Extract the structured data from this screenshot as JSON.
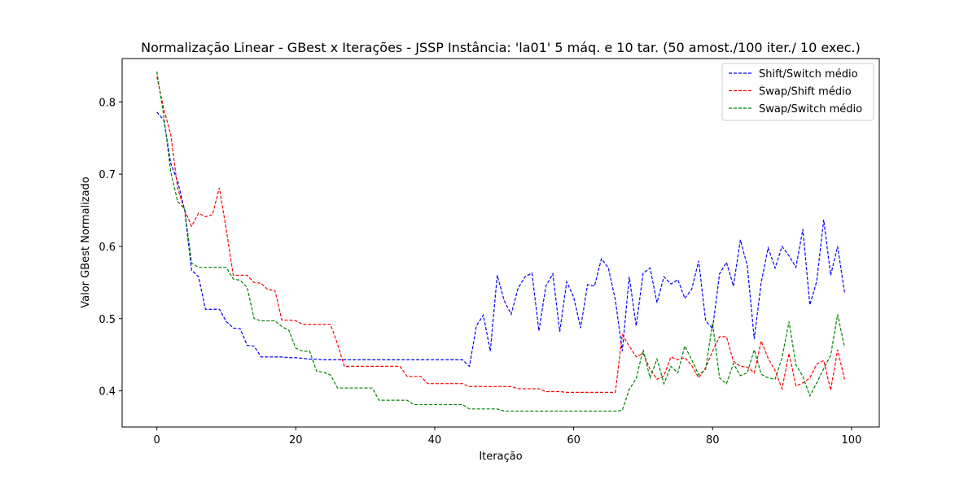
{
  "chart_data": {
    "type": "line",
    "title": "Normalização Linear - GBest x Iterações - JSSP Instância: 'la01' 5 máq. e 10 tar. (50 amost./100 iter./ 10 exec.)",
    "xlabel": "Iteração",
    "ylabel": "Valor GBest Normalizado",
    "xlim": [
      -5,
      104
    ],
    "ylim": [
      0.35,
      0.86
    ],
    "xticks": [
      0,
      20,
      40,
      60,
      80,
      100
    ],
    "yticks": [
      0.4,
      0.5,
      0.6,
      0.7,
      0.8
    ],
    "ytick_labels": [
      "0.4",
      "0.5",
      "0.6",
      "0.7",
      "0.8"
    ],
    "legend_position": "top-right",
    "grid": false,
    "series": [
      {
        "name": "Shift/Switch médio",
        "color": "#0000ff",
        "values": [
          0.786,
          0.775,
          0.715,
          0.69,
          0.65,
          0.567,
          0.558,
          0.513,
          0.513,
          0.513,
          0.496,
          0.487,
          0.486,
          0.463,
          0.462,
          0.447,
          0.447,
          0.447,
          0.447,
          0.446,
          0.446,
          0.445,
          0.444,
          0.444,
          0.443,
          0.443,
          0.443,
          0.443,
          0.443,
          0.443,
          0.443,
          0.443,
          0.443,
          0.443,
          0.443,
          0.443,
          0.443,
          0.443,
          0.443,
          0.443,
          0.443,
          0.443,
          0.443,
          0.443,
          0.443,
          0.434,
          0.49,
          0.505,
          0.455,
          0.56,
          0.525,
          0.506,
          0.542,
          0.558,
          0.563,
          0.483,
          0.545,
          0.562,
          0.482,
          0.551,
          0.53,
          0.487,
          0.547,
          0.545,
          0.583,
          0.57,
          0.526,
          0.455,
          0.558,
          0.49,
          0.563,
          0.57,
          0.522,
          0.558,
          0.548,
          0.554,
          0.528,
          0.541,
          0.58,
          0.497,
          0.486,
          0.562,
          0.578,
          0.545,
          0.609,
          0.573,
          0.472,
          0.55,
          0.598,
          0.57,
          0.6,
          0.587,
          0.571,
          0.624,
          0.519,
          0.552,
          0.637,
          0.56,
          0.6,
          0.536
        ]
      },
      {
        "name": "Swap/Shift médio",
        "color": "#ff0000",
        "values": [
          0.835,
          0.79,
          0.755,
          0.68,
          0.65,
          0.628,
          0.646,
          0.641,
          0.644,
          0.681,
          0.623,
          0.56,
          0.56,
          0.56,
          0.55,
          0.549,
          0.54,
          0.539,
          0.498,
          0.498,
          0.497,
          0.492,
          0.492,
          0.492,
          0.492,
          0.492,
          0.465,
          0.434,
          0.434,
          0.434,
          0.434,
          0.434,
          0.434,
          0.434,
          0.434,
          0.434,
          0.42,
          0.42,
          0.42,
          0.41,
          0.41,
          0.41,
          0.41,
          0.41,
          0.41,
          0.406,
          0.406,
          0.406,
          0.406,
          0.406,
          0.406,
          0.406,
          0.403,
          0.403,
          0.403,
          0.403,
          0.399,
          0.399,
          0.399,
          0.398,
          0.398,
          0.398,
          0.398,
          0.398,
          0.398,
          0.398,
          0.398,
          0.478,
          0.462,
          0.447,
          0.452,
          0.43,
          0.416,
          0.421,
          0.447,
          0.443,
          0.446,
          0.435,
          0.418,
          0.432,
          0.455,
          0.475,
          0.475,
          0.441,
          0.434,
          0.433,
          0.425,
          0.469,
          0.445,
          0.428,
          0.403,
          0.452,
          0.407,
          0.411,
          0.418,
          0.437,
          0.442,
          0.401,
          0.457,
          0.416
        ]
      },
      {
        "name": "Swap/Switch médio",
        "color": "#008000",
        "values": [
          0.842,
          0.78,
          0.703,
          0.662,
          0.652,
          0.577,
          0.571,
          0.571,
          0.571,
          0.571,
          0.571,
          0.555,
          0.553,
          0.543,
          0.5,
          0.497,
          0.497,
          0.497,
          0.489,
          0.484,
          0.459,
          0.455,
          0.455,
          0.427,
          0.426,
          0.422,
          0.404,
          0.404,
          0.404,
          0.404,
          0.404,
          0.404,
          0.387,
          0.387,
          0.387,
          0.387,
          0.387,
          0.381,
          0.381,
          0.381,
          0.381,
          0.381,
          0.381,
          0.381,
          0.381,
          0.375,
          0.375,
          0.375,
          0.375,
          0.375,
          0.372,
          0.372,
          0.372,
          0.372,
          0.372,
          0.372,
          0.372,
          0.372,
          0.372,
          0.372,
          0.372,
          0.372,
          0.372,
          0.372,
          0.372,
          0.372,
          0.372,
          0.373,
          0.402,
          0.417,
          0.457,
          0.418,
          0.444,
          0.41,
          0.434,
          0.425,
          0.462,
          0.443,
          0.422,
          0.43,
          0.494,
          0.418,
          0.41,
          0.438,
          0.421,
          0.425,
          0.457,
          0.423,
          0.418,
          0.416,
          0.446,
          0.496,
          0.436,
          0.42,
          0.393,
          0.411,
          0.431,
          0.449,
          0.506,
          0.46
        ]
      }
    ]
  }
}
